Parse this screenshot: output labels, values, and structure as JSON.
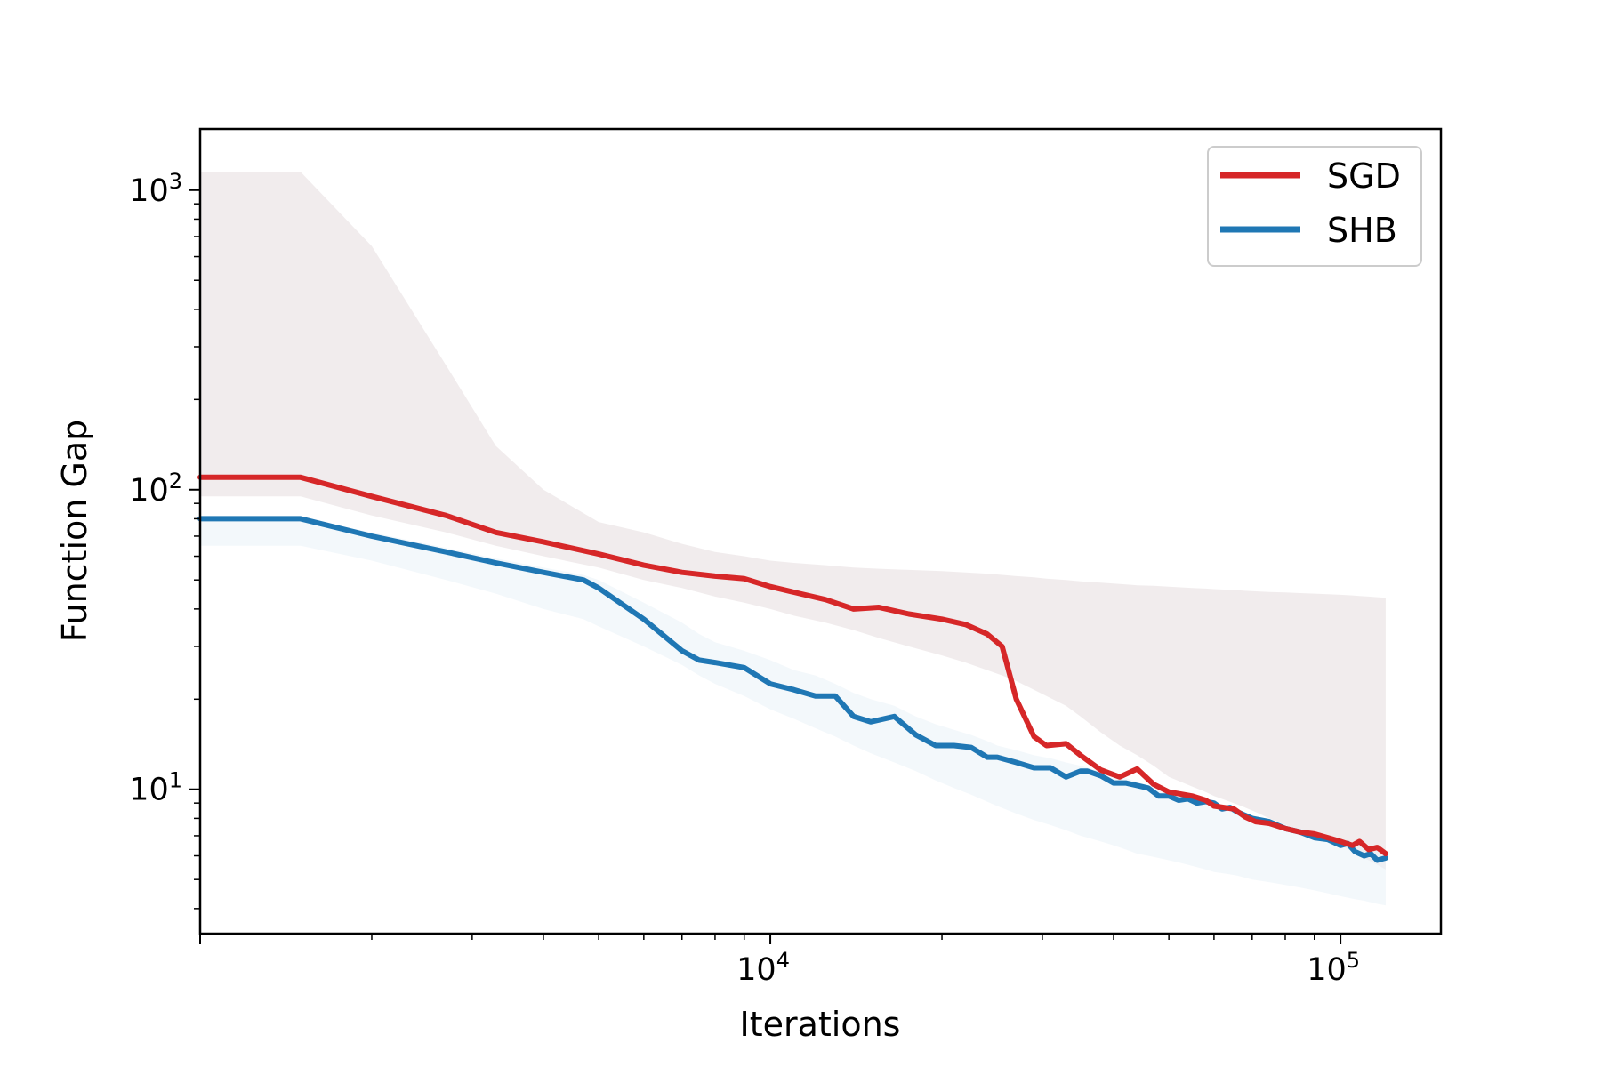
{
  "chart_data": {
    "type": "line",
    "title": "",
    "xlabel": "Iterations",
    "ylabel": "Function Gap",
    "xscale": "log",
    "yscale": "log",
    "xlim": [
      1000,
      150000
    ],
    "ylim": [
      3.3,
      1600
    ],
    "grid": false,
    "legend_position": "top-right",
    "x_ticks": [
      {
        "value": 10000,
        "base": "10",
        "exp": "4"
      },
      {
        "value": 100000,
        "base": "10",
        "exp": "5"
      }
    ],
    "y_ticks": [
      {
        "value": 10,
        "base": "10",
        "exp": "1"
      },
      {
        "value": 100,
        "base": "10",
        "exp": "2"
      },
      {
        "value": 1000,
        "base": "10",
        "exp": "3"
      }
    ],
    "series": [
      {
        "name": "SGD",
        "color": "#d62728",
        "band_color": "#e6dcdf",
        "x": [
          1000,
          1300,
          1500,
          2000,
          2700,
          3300,
          4000,
          5000,
          6000,
          7000,
          8000,
          9000,
          10000,
          11000,
          12500,
          14000,
          15500,
          17500,
          20000,
          22000,
          24000,
          25500,
          27000,
          29000,
          30500,
          33000,
          35000,
          38000,
          41000,
          44000,
          47000,
          50000,
          55000,
          58000,
          60000,
          65000,
          68000,
          71000,
          75000,
          80000,
          85000,
          90000,
          95000,
          100000,
          105000,
          108000,
          112000,
          116000,
          120000
        ],
        "y": [
          110,
          110,
          110,
          95,
          82,
          72,
          67,
          61,
          56,
          53,
          51.5,
          50.5,
          47.5,
          45.5,
          43,
          40,
          40.5,
          38.5,
          37,
          35.5,
          33,
          30,
          20,
          15,
          14,
          14.2,
          13,
          11.6,
          11,
          11.7,
          10.4,
          9.8,
          9.5,
          9.2,
          8.8,
          8.6,
          8.1,
          7.8,
          7.7,
          7.4,
          7.2,
          7.1,
          6.9,
          6.7,
          6.5,
          6.7,
          6.3,
          6.4,
          6.1
        ],
        "band_upper": [
          1150,
          1150,
          1150,
          650,
          260,
          140,
          100,
          78,
          72,
          66,
          62,
          60,
          58,
          57,
          56,
          55,
          54.5,
          54,
          53.5,
          53,
          52.5,
          52,
          51.5,
          51,
          50.5,
          50,
          49.5,
          49,
          48.5,
          48,
          47.8,
          47.5,
          47,
          46.8,
          46.6,
          46.3,
          46,
          45.8,
          45.6,
          45.4,
          45.2,
          45,
          44.8,
          44.6,
          44.4,
          44.2,
          44,
          43.8,
          43.6
        ],
        "band_lower": [
          95,
          95,
          95,
          82,
          72,
          65,
          60,
          55,
          50,
          47,
          44,
          42,
          40,
          38,
          36,
          34,
          32,
          30,
          28,
          26.5,
          25,
          24,
          23,
          21.5,
          20.5,
          19,
          17.5,
          15.5,
          14,
          13,
          12,
          11,
          10.2,
          9.8,
          9.5,
          9,
          8.7,
          8.4,
          8,
          7.6,
          7.3,
          7,
          6.8,
          6.5,
          6.2,
          6.0,
          5.8,
          5.6,
          5.4
        ]
      },
      {
        "name": "SHB",
        "color": "#1f77b4",
        "band_color": "#eaf2f8",
        "x": [
          1000,
          1300,
          1500,
          2000,
          2700,
          3300,
          4000,
          4700,
          5000,
          6000,
          7000,
          7500,
          8000,
          9000,
          10000,
          11000,
          12000,
          13000,
          14000,
          15000,
          16500,
          18000,
          19500,
          21000,
          22500,
          24000,
          25000,
          27000,
          29000,
          31000,
          33000,
          35000,
          36000,
          38000,
          40000,
          42000,
          44000,
          46000,
          48000,
          50000,
          52000,
          54000,
          56000,
          58000,
          60000,
          62000,
          64000,
          66000,
          70000,
          75000,
          80000,
          85000,
          90000,
          95000,
          100000,
          103000,
          106000,
          110000,
          113000,
          116000,
          120000
        ],
        "y": [
          80,
          80,
          80,
          70,
          62,
          57,
          53,
          50,
          47,
          37,
          29,
          27,
          26.5,
          25.5,
          22.5,
          21.5,
          20.5,
          20.5,
          17.5,
          16.8,
          17.5,
          15.2,
          14,
          14,
          13.8,
          12.8,
          12.8,
          12.3,
          11.8,
          11.8,
          11,
          11.5,
          11.5,
          11.1,
          10.5,
          10.5,
          10.3,
          10.1,
          9.5,
          9.5,
          9.2,
          9.3,
          9,
          9.1,
          9.0,
          8.6,
          8.7,
          8.4,
          8.0,
          7.8,
          7.4,
          7.2,
          6.9,
          6.8,
          6.5,
          6.6,
          6.2,
          6.0,
          6.1,
          5.8,
          5.9
        ],
        "band_upper": [
          80,
          80,
          80,
          72,
          64,
          59,
          55,
          52,
          50,
          42,
          36,
          33,
          31,
          29,
          27,
          25,
          24,
          22.5,
          21,
          20,
          19,
          17.5,
          16.5,
          15.8,
          15.2,
          14.5,
          14,
          13.5,
          13,
          12.7,
          12.3,
          12,
          11.8,
          11.5,
          11.2,
          10.9,
          10.6,
          10.3,
          10.1,
          9.9,
          9.7,
          9.5,
          9.3,
          9.1,
          9.0,
          8.8,
          8.7,
          8.6,
          8.2,
          7.9,
          7.6,
          7.4,
          7.2,
          7.0,
          6.8,
          6.7,
          6.6,
          6.5,
          6.4,
          6.3,
          6.2
        ],
        "band_lower": [
          65,
          65,
          65,
          58,
          50,
          45,
          40,
          37,
          35,
          30,
          26,
          24,
          22.5,
          20.5,
          18.5,
          17.2,
          16,
          15,
          14,
          13.2,
          12.3,
          11.5,
          10.7,
          10.1,
          9.6,
          9.1,
          8.8,
          8.3,
          7.9,
          7.6,
          7.3,
          7.0,
          6.9,
          6.7,
          6.5,
          6.3,
          6.1,
          6.0,
          5.9,
          5.8,
          5.7,
          5.6,
          5.5,
          5.4,
          5.3,
          5.25,
          5.2,
          5.15,
          5.0,
          4.9,
          4.8,
          4.7,
          4.6,
          4.5,
          4.4,
          4.35,
          4.3,
          4.25,
          4.2,
          4.15,
          4.1
        ]
      }
    ]
  }
}
